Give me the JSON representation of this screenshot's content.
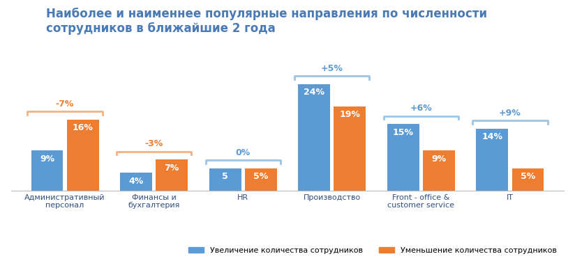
{
  "chart_data": {
    "type": "bar",
    "title": "Наиболее и наименнее популярные направления по численности сотрудников в ближайшие 2 года",
    "categories": [
      "Административный персонал",
      "Финансы и бухгалтерия",
      "HR",
      "Производство",
      "Front - office & customer service",
      "IT"
    ],
    "series": [
      {
        "name": "Увеличение количества сотрудников",
        "color": "#5b9bd5",
        "values": [
          9,
          4,
          5,
          24,
          15,
          14
        ],
        "value_labels": [
          "9%",
          "4%",
          "5",
          "24%",
          "15%",
          "14%"
        ]
      },
      {
        "name": "Уменьшение количества сотрудников",
        "color": "#ed7d31",
        "values": [
          16,
          7,
          5,
          19,
          9,
          5
        ],
        "value_labels": [
          "16%",
          "7%",
          "5%",
          "19%",
          "9%",
          "5%"
        ]
      }
    ],
    "differences": [
      -7,
      -3,
      0,
      5,
      6,
      9
    ],
    "difference_labels": [
      "-7%",
      "-3%",
      "0%",
      "+5%",
      "+6%",
      "+9%"
    ],
    "ylim": [
      0,
      30
    ],
    "data_labels": true,
    "tick_labels": "x",
    "legend": "lower right",
    "grid": false
  }
}
